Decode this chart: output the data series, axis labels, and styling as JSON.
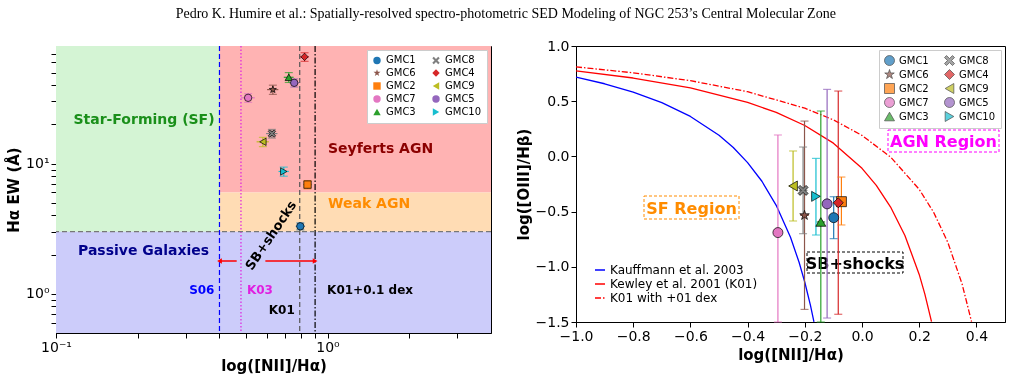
{
  "chart_data": [
    {
      "type": "scatter",
      "annotations": [
        "Pedro K. Humire et al.: Spatially-resolved spectro-photometric SED Modeling of NGC 253’s Central Molecular Zone",
        {
          "text": "SB+shocks",
          "x": 0.62,
          "y": 2.8
        }
      ],
      "xlabel": "log([NII]/Hα)",
      "ylabel": "Hα EW (Å)",
      "log": "xy",
      "xlim": [
        0.1,
        4
      ],
      "ylim": [
        0.5,
        80
      ],
      "xticks": [
        {
          "value": 0.1,
          "label": "10⁻¹"
        },
        {
          "value": 0.2,
          "label": null
        },
        {
          "value": 0.3,
          "label": null
        },
        {
          "value": 0.4,
          "label": null
        },
        {
          "value": 0.5,
          "label": null
        },
        {
          "value": 0.6,
          "label": null
        },
        {
          "value": 0.7,
          "label": null
        },
        {
          "value": 0.8,
          "label": null
        },
        {
          "value": 0.9,
          "label": null
        },
        {
          "value": 1,
          "label": "10⁰"
        },
        {
          "value": 2,
          "label": null
        },
        {
          "value": 3,
          "label": null
        }
      ],
      "yticks": [
        {
          "value": 0.6,
          "label": null
        },
        {
          "value": 0.7,
          "label": null
        },
        {
          "value": 0.8,
          "label": null
        },
        {
          "value": 0.9,
          "label": null
        },
        {
          "value": 1,
          "label": "10⁰"
        },
        {
          "value": 2,
          "label": null
        },
        {
          "value": 3,
          "label": null
        },
        {
          "value": 4,
          "label": null
        },
        {
          "value": 5,
          "label": null
        },
        {
          "value": 6,
          "label": null
        },
        {
          "value": 7,
          "label": null
        },
        {
          "value": 8,
          "label": null
        },
        {
          "value": 9,
          "label": null
        },
        {
          "value": 10,
          "label": "10¹"
        },
        {
          "value": 20,
          "label": null
        },
        {
          "value": 30,
          "label": null
        },
        {
          "value": 40,
          "label": null
        },
        {
          "value": 50,
          "label": null
        },
        {
          "value": 60,
          "label": null
        },
        {
          "value": 70,
          "label": null
        }
      ],
      "legend": "top right",
      "bands": [
        {
          "axis": "y",
          "from": 6,
          "to": 80,
          "label": "Seyferts AGN",
          "color": "#ffb3b3"
        },
        {
          "axis": "y",
          "from": 3,
          "to": 6,
          "label": "Weak AGN",
          "color": "#ffdcb4"
        },
        {
          "axis": "x",
          "from": 0.1,
          "to": 0.4,
          "label": "Star-Forming (SF)",
          "color": "#d4f4d4"
        },
        {
          "axis": "y",
          "from": 0.5,
          "to": 3,
          "label": "Passive Galaxies",
          "color": "#ccccfa"
        }
      ],
      "ref_lines": [
        {
          "axis": "x",
          "value": 0.4,
          "label": "S06",
          "color": "#0000ff",
          "line_style": "dashed"
        },
        {
          "axis": "x",
          "value": 0.48,
          "label": "K03",
          "color": "#e020e0",
          "line_style": "dotted"
        },
        {
          "axis": "x",
          "value": 0.79,
          "label": "K01",
          "color": "#555555",
          "line_style": "dashed"
        },
        {
          "axis": "x",
          "value": 0.9,
          "label": "K01+0.1 dex",
          "color": "#000000",
          "line_style": "dashdot"
        },
        {
          "axis": "y",
          "value": 3,
          "color": "#777777",
          "line_style": "dashed"
        }
      ],
      "series": [
        {
          "name": "GMC1",
          "color": "#1f77b4",
          "marker": "circle",
          "x": [
            0.794
          ],
          "values": [
            3.3
          ],
          "errors": [
            0.2
          ],
          "xerrors": [
            0.03
          ]
        },
        {
          "name": "GMC2",
          "color": "#ff7f0e",
          "marker": "square",
          "x": [
            0.844
          ],
          "values": [
            6.9
          ],
          "errors": [
            0.5
          ],
          "xerrors": [
            0.03
          ]
        },
        {
          "name": "GMC3",
          "color": "#2ca02c",
          "marker": "triangle",
          "x": [
            0.72
          ],
          "values": [
            46
          ],
          "errors": [
            4
          ],
          "xerrors": [
            0.03
          ]
        },
        {
          "name": "GMC4",
          "color": "#d62728",
          "marker": "diamond",
          "x": [
            0.823
          ],
          "values": [
            66
          ],
          "errors": [
            5
          ],
          "xerrors": [
            0.03
          ]
        },
        {
          "name": "GMC5",
          "color": "#9467bd",
          "x": [
            0.754
          ],
          "values": [
            41.7
          ],
          "errors": [
            3
          ],
          "xerrors": [
            0.03
          ]
        },
        {
          "name": "GMC6",
          "color": "#8c564b",
          "marker": "star",
          "x": [
            0.629
          ],
          "values": [
            37
          ],
          "errors": [
            3
          ],
          "xerrors": [
            0.03
          ]
        },
        {
          "name": "GMC7",
          "color": "#e377c2",
          "marker": "circle",
          "x": [
            0.51
          ],
          "values": [
            32
          ],
          "errors": [
            2.5
          ],
          "xerrors": [
            0.03
          ]
        },
        {
          "name": "GMC8",
          "color": "#7f7f7f",
          "marker": "x",
          "x": [
            0.624
          ],
          "values": [
            17
          ],
          "errors": [
            1.3
          ],
          "xerrors": [
            0.03
          ]
        },
        {
          "name": "GMC9",
          "color": "#bcbd22",
          "marker": "triangle-left",
          "x": [
            0.578
          ],
          "values": [
            14.7
          ],
          "errors": [
            1.2
          ],
          "xerrors": [
            0.03
          ]
        },
        {
          "name": "GMC10",
          "color": "#17becf",
          "marker": "triangle-right",
          "x": [
            0.69
          ],
          "values": [
            8.7
          ],
          "errors": [
            0.7
          ],
          "xerrors": [
            0.03
          ]
        }
      ]
    },
    {
      "type": "scatter",
      "annotations": [
        "SF Region",
        "AGN Region",
        "SB+shocks"
      ],
      "xlabel": "log([NII]/Hα)",
      "ylabel": "log([OIII]/Hβ)",
      "xlim": [
        -1.0,
        0.5
      ],
      "ylim": [
        -1.5,
        1.0
      ],
      "xticks": [
        {
          "value": -1.0,
          "label": "−1.0"
        },
        {
          "value": -0.8,
          "label": "−0.8"
        },
        {
          "value": -0.6,
          "label": "−0.6"
        },
        {
          "value": -0.4,
          "label": "−0.4"
        },
        {
          "value": -0.2,
          "label": "−0.2"
        },
        {
          "value": 0.0,
          "label": "0.0"
        },
        {
          "value": 0.2,
          "label": "0.2"
        },
        {
          "value": 0.4,
          "label": "0.4"
        }
      ],
      "yticks": [
        {
          "value": -1.5,
          "label": "−1.5"
        },
        {
          "value": -1.0,
          "label": "−1.0"
        },
        {
          "value": -0.5,
          "label": "−0.5"
        },
        {
          "value": 0.0,
          "label": "0.0"
        },
        {
          "value": 0.5,
          "label": "0.5"
        },
        {
          "value": 1.0,
          "label": "1.0"
        }
      ],
      "legend": "top right",
      "series": [
        {
          "name": "Kauffmann et al. 2003",
          "type": "line",
          "color": "#0000ff",
          "line_style": "solid",
          "x": [
            -1.0,
            -0.9,
            -0.8,
            -0.7,
            -0.6,
            -0.5,
            -0.45,
            -0.4,
            -0.35,
            -0.3,
            -0.25,
            -0.22,
            -0.2,
            -0.18,
            -0.168
          ],
          "values": [
            0.719,
            0.658,
            0.582,
            0.487,
            0.362,
            0.191,
            0.08,
            -0.056,
            -0.225,
            -0.443,
            -0.733,
            -0.959,
            -1.14,
            -1.352,
            -1.498
          ]
        },
        {
          "name": "Kewley et al. 2001 (K01)",
          "type": "line",
          "color": "#ff0000",
          "line_style": "solid",
          "x": [
            -1.0,
            -0.8,
            -0.6,
            -0.4,
            -0.3,
            -0.2,
            -0.1,
            0.0,
            0.05,
            0.1,
            0.15,
            0.2,
            0.22,
            0.243
          ],
          "values": [
            0.775,
            0.71,
            0.62,
            0.489,
            0.398,
            0.28,
            0.12,
            -0.108,
            -0.262,
            -0.459,
            -0.716,
            -1.069,
            -1.25,
            -1.497
          ]
        },
        {
          "name": "K01 with +01 dex",
          "type": "line",
          "color": "#ff0000",
          "line_style": "dashdot",
          "x": [
            -1.0,
            -0.8,
            -0.6,
            -0.4,
            -0.2,
            -0.1,
            0.0,
            0.1,
            0.2,
            0.25,
            0.3,
            0.35,
            0.383
          ],
          "values": [
            0.811,
            0.757,
            0.686,
            0.586,
            0.437,
            0.331,
            0.19,
            -0.006,
            -0.298,
            -0.504,
            -0.778,
            -1.156,
            -1.497
          ]
        },
        {
          "name": "GMC1",
          "color": "#1f77b4",
          "marker": "circle",
          "x": [
            -0.099
          ],
          "values": [
            -0.555
          ],
          "errors": [
            [
              -0.745,
              -0.365
            ]
          ],
          "xerrors": [
            0.015
          ]
        },
        {
          "name": "GMC2",
          "color": "#ff7f0e",
          "marker": "square",
          "x": [
            -0.072
          ],
          "values": [
            -0.41
          ],
          "errors": [
            [
              -0.621,
              -0.187
            ]
          ],
          "xerrors": [
            0.015
          ]
        },
        {
          "name": "GMC3",
          "color": "#2ca02c",
          "marker": "triangle",
          "x": [
            -0.144
          ],
          "values": [
            -0.594
          ],
          "errors": [
            [
              -1.5,
              0.411
            ]
          ],
          "xerrors": [
            0.015
          ]
        },
        {
          "name": "GMC4",
          "color": "#d62728",
          "marker": "diamond",
          "x": [
            -0.083
          ],
          "values": [
            -0.42
          ],
          "errors": [
            [
              -1.43,
              0.592
            ]
          ],
          "xerrors": [
            0.015
          ]
        },
        {
          "name": "GMC5",
          "color": "#9467bd",
          "x": [
            -0.122
          ],
          "values": [
            -0.43
          ],
          "errors": [
            [
              -1.464,
              0.607
            ]
          ],
          "xerrors": [
            0.015
          ]
        },
        {
          "name": "GMC6",
          "color": "#8c564b",
          "marker": "star",
          "x": [
            -0.201
          ],
          "values": [
            -0.534
          ],
          "errors": [
            [
              -1.386,
              0.32
            ]
          ],
          "xerrors": [
            0.015
          ]
        },
        {
          "name": "GMC7",
          "color": "#e377c2",
          "marker": "circle",
          "x": [
            -0.294
          ],
          "values": [
            -0.69
          ],
          "errors": [
            [
              -1.5,
              0.194
            ]
          ],
          "xerrors": [
            0.015
          ]
        },
        {
          "name": "GMC8",
          "color": "#7f7f7f",
          "marker": "x",
          "x": [
            -0.206
          ],
          "values": [
            -0.308
          ],
          "errors": [
            [
              -0.7,
              0.085
            ]
          ],
          "xerrors": [
            0.015
          ]
        },
        {
          "name": "GMC9",
          "color": "#bcbd22",
          "marker": "triangle-left",
          "x": [
            -0.241
          ],
          "values": [
            -0.268
          ],
          "errors": [
            [
              -0.585,
              0.049
            ]
          ],
          "xerrors": [
            0.015
          ]
        },
        {
          "name": "GMC10",
          "color": "#17becf",
          "marker": "triangle-right",
          "x": [
            -0.161
          ],
          "values": [
            -0.362
          ],
          "errors": [
            [
              -0.712,
              -0.018
            ]
          ],
          "xerrors": [
            0.015
          ]
        }
      ]
    }
  ]
}
